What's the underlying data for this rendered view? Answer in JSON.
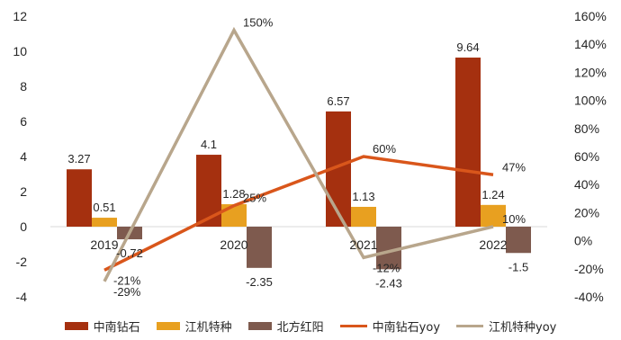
{
  "chart_data": {
    "type": "bar",
    "categories": [
      "2019",
      "2020",
      "2021",
      "2022"
    ],
    "series": [
      {
        "name": "中南钻石",
        "kind": "bar",
        "axis": "left",
        "color": "#A5300F",
        "values": [
          3.27,
          4.1,
          6.57,
          9.64
        ],
        "labels": [
          "3.27",
          "4.1",
          "6.57",
          "9.64"
        ]
      },
      {
        "name": "江机特种",
        "kind": "bar",
        "axis": "left",
        "color": "#E8A020",
        "values": [
          0.51,
          1.28,
          1.13,
          1.24
        ],
        "labels": [
          "0.51",
          "1.28",
          "1.13",
          "1.24"
        ]
      },
      {
        "name": "北方红阳",
        "kind": "bar",
        "axis": "left",
        "color": "#7E5A4E",
        "values": [
          -0.72,
          -2.35,
          -2.43,
          -1.5
        ],
        "labels": [
          "-0.72",
          "-2.35",
          "-2.43",
          "-1.5"
        ]
      },
      {
        "name": "中南钻石yoy",
        "kind": "line",
        "axis": "right",
        "color": "#D9561B",
        "values": [
          -21,
          25,
          60,
          47
        ],
        "labels": [
          "-21%",
          "25%",
          "60%",
          "47%"
        ]
      },
      {
        "name": "江机特种yoy",
        "kind": "line",
        "axis": "right",
        "color": "#B8A68C",
        "values": [
          -29,
          150,
          -12,
          10
        ],
        "labels": [
          "-29%",
          "150%",
          "-12%",
          "10%"
        ]
      }
    ],
    "y_left": {
      "min": -4,
      "max": 12,
      "ticks": [
        "-4",
        "-2",
        "0",
        "2",
        "4",
        "6",
        "8",
        "10",
        "12"
      ]
    },
    "y_right": {
      "min": -40,
      "max": 160,
      "ticks": [
        "-40%",
        "-20%",
        "0%",
        "20%",
        "40%",
        "60%",
        "80%",
        "100%",
        "120%",
        "140%",
        "160%"
      ]
    },
    "grid": false,
    "legend_position": "bottom"
  }
}
